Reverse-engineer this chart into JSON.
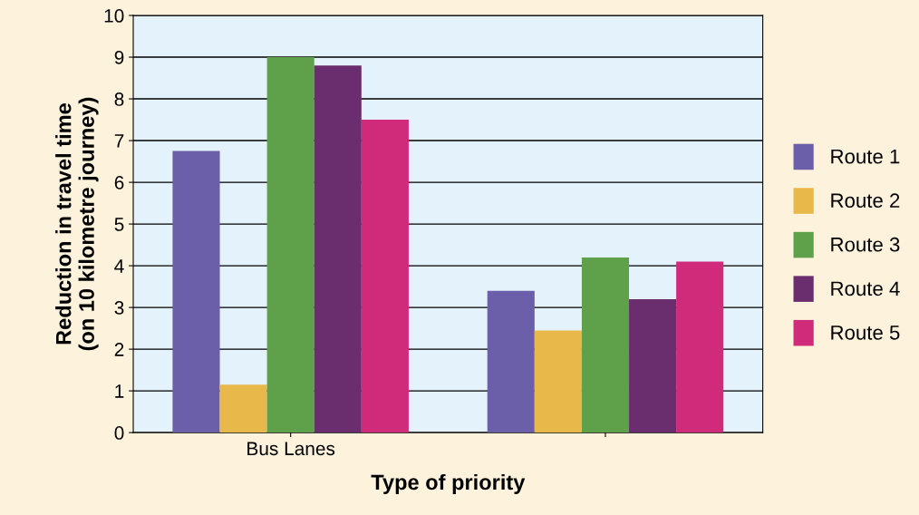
{
  "chart_data": {
    "type": "bar",
    "xlabel": "Type of priority",
    "ylabel": "Reduction in travel time\n(on 10 kilometre journey)",
    "categories": [
      "Bus Lanes",
      null
    ],
    "series": [
      {
        "name": "Route 1",
        "color": "#6a5fa8",
        "values": [
          6.75,
          3.4
        ]
      },
      {
        "name": "Route 2",
        "color": "#e8b84a",
        "values": [
          1.15,
          2.45
        ]
      },
      {
        "name": "Route 3",
        "color": "#5fa04a",
        "values": [
          9.0,
          4.2
        ]
      },
      {
        "name": "Route 4",
        "color": "#6a2e6e",
        "values": [
          8.8,
          3.2
        ]
      },
      {
        "name": "Route 5",
        "color": "#d02a7a",
        "values": [
          7.5,
          4.1
        ]
      }
    ],
    "ylim": [
      0,
      10
    ],
    "yticks": [
      0,
      1,
      2,
      3,
      4,
      5,
      6,
      7,
      8,
      9,
      10
    ],
    "grid": "y",
    "legend": "right"
  }
}
